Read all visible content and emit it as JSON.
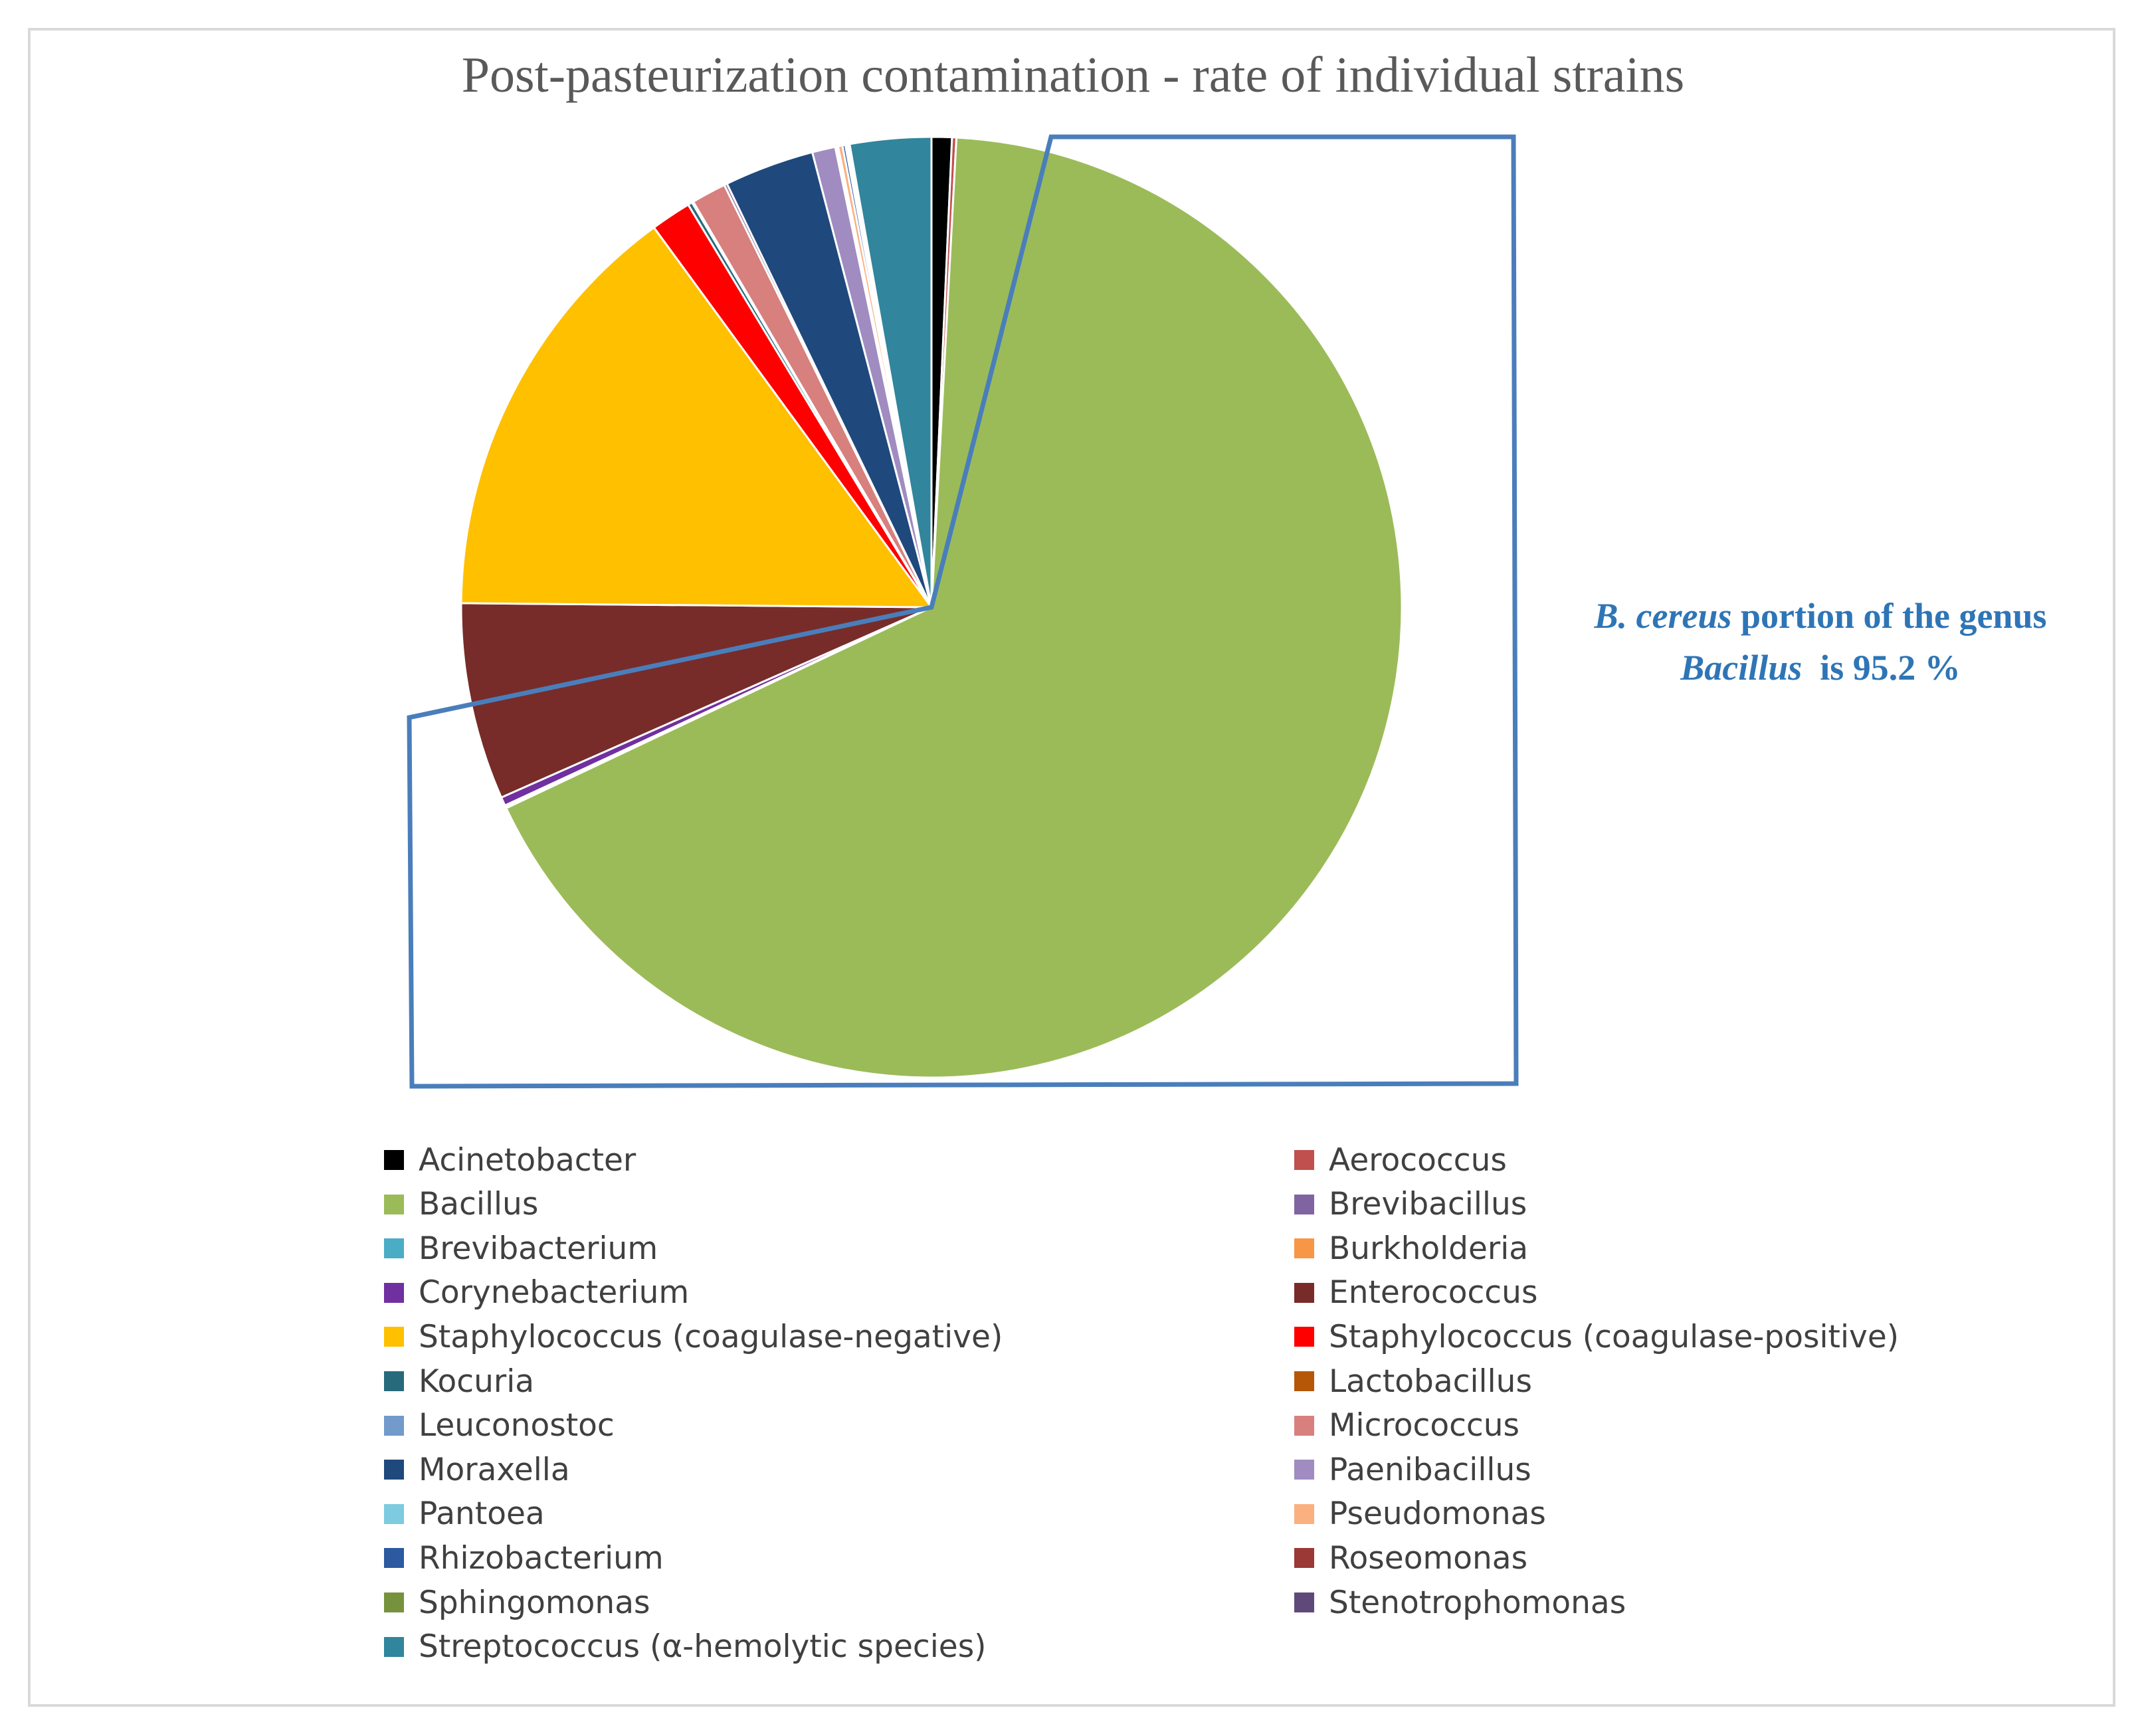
{
  "chart_data": {
    "type": "pie",
    "title": "Post-pasteurization contamination - rate of individual strains",
    "slices": [
      {
        "label": "Acinetobacter",
        "value": 0.7,
        "color": "#000000"
      },
      {
        "label": "Aerococcus",
        "value": 0.15,
        "color": "#c0504d"
      },
      {
        "label": "Bacillus",
        "value": 67.5,
        "color": "#9bbb59"
      },
      {
        "label": "Brevibacillus",
        "value": 0.1,
        "color": "#8064a2"
      },
      {
        "label": "Brevibacterium",
        "value": 0.05,
        "color": "#4bacc6"
      },
      {
        "label": "Burkholderia",
        "value": 0.05,
        "color": "#f79646"
      },
      {
        "label": "Corynebacterium",
        "value": 0.3,
        "color": "#7030a0"
      },
      {
        "label": "Enterococcus",
        "value": 6.8,
        "color": "#772c2a"
      },
      {
        "label": "Staphylococcus (coagulase-negative)",
        "value": 14.9,
        "color": "#ffc000"
      },
      {
        "label": "Staphylococcus (coagulase-positive)",
        "value": 1.4,
        "color": "#ff0000"
      },
      {
        "label": "Kocuria",
        "value": 0.15,
        "color": "#276a7c"
      },
      {
        "label": "Lactobacillus",
        "value": 0.05,
        "color": "#b65708"
      },
      {
        "label": "Leuconostoc",
        "value": 0.05,
        "color": "#729aca"
      },
      {
        "label": "Micrococcus",
        "value": 1.2,
        "color": "#d7807e"
      },
      {
        "label": "Moraxella",
        "value": 3.1,
        "color": "#1f497d"
      },
      {
        "label": "Paenibacillus",
        "value": 0.8,
        "color": "#a08cc0"
      },
      {
        "label": "Pantoea",
        "value": 0.05,
        "color": "#7ccbe0"
      },
      {
        "label": "Pseudomonas",
        "value": 0.15,
        "color": "#fbb080"
      },
      {
        "label": "Rhizobacterium",
        "value": 0.1,
        "color": "#2c5aa0"
      },
      {
        "label": "Roseomonas",
        "value": 0.05,
        "color": "#9a3936"
      },
      {
        "label": "Sphingomonas",
        "value": 0.05,
        "color": "#76923c"
      },
      {
        "label": "Stenotrophomonas",
        "value": 0.05,
        "color": "#5f497a"
      },
      {
        "label": "Streptococcus (α-hemolytic species)",
        "value": 2.8,
        "color": "#31859c"
      }
    ],
    "slice_order": [
      0,
      1,
      2,
      4,
      5,
      6,
      7,
      8,
      9,
      10,
      11,
      13,
      3,
      14,
      15,
      12,
      16,
      17,
      18,
      19,
      20,
      21,
      22
    ],
    "annotation": {
      "italic_1": "B. cereus",
      "text_1": "portion of the genus",
      "italic_2": "Bacillus",
      "text_2": "is 95.2 %"
    },
    "highlight_color": "#4a7ebb",
    "legend_placement": "bottom, two columns"
  }
}
